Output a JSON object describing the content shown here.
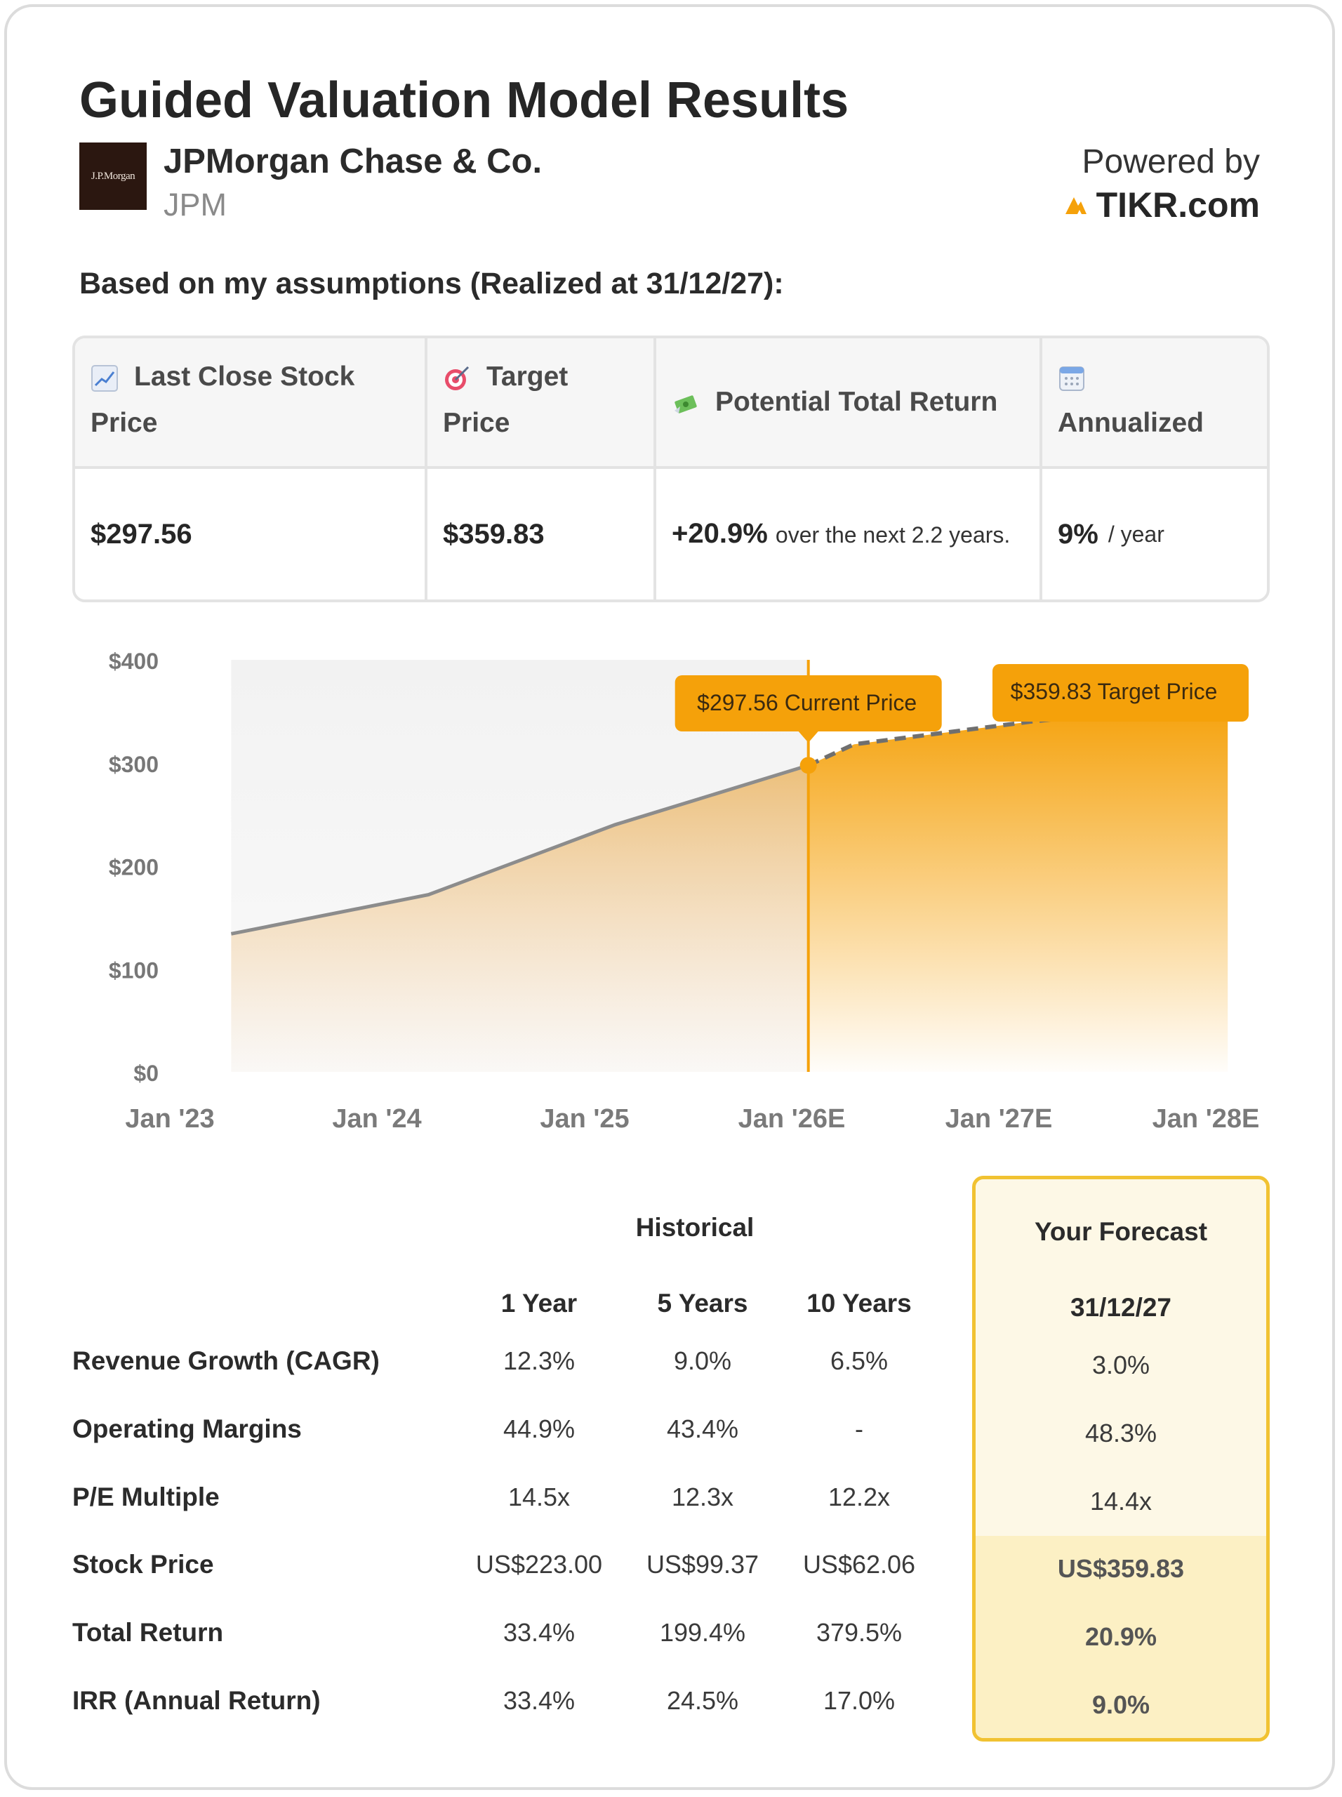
{
  "header": {
    "title": "Guided Valuation Model Results",
    "company": "JPMorgan Chase & Co.",
    "ticker": "JPM",
    "logo_text": "J.P.Morgan",
    "powered_by": "Powered by",
    "brand": "TIKR.com"
  },
  "subtitle": "Based on my assumptions (Realized at 31/12/27):",
  "summary": {
    "headers": {
      "last_close": "Last Close Stock Price",
      "target": "Target Price",
      "potential": "Potential Total Return",
      "annualized": "Annualized"
    },
    "values": {
      "last_close": "$297.56",
      "target": "$359.83",
      "return_pct": "+20.9%",
      "return_text": "over the next 2.2 years.",
      "annualized_pct": "9%",
      "annualized_unit": "/ year"
    }
  },
  "chart_data": {
    "type": "area",
    "x_ticks": [
      "Jan '23",
      "Jan '24",
      "Jan '25",
      "Jan '26E",
      "Jan '27E",
      "Jan '28E"
    ],
    "y_ticks": [
      "$0",
      "$100",
      "$200",
      "$300",
      "$400"
    ],
    "ylim": [
      0,
      400
    ],
    "xlim": [
      2023.0,
      2028.0
    ],
    "series": [
      {
        "name": "Historical",
        "points": [
          [
            2023.15,
            134
          ],
          [
            2024.1,
            172
          ],
          [
            2025.0,
            240
          ],
          [
            2025.93,
            297.56
          ]
        ]
      },
      {
        "name": "Forecast",
        "points": [
          [
            2025.93,
            297.56
          ],
          [
            2026.15,
            318
          ],
          [
            2027.0,
            340
          ],
          [
            2027.95,
            359.83
          ]
        ]
      }
    ],
    "current_marker": {
      "x": 2025.93,
      "y": 297.56,
      "label": "$297.56 Current Price"
    },
    "target_marker": {
      "x": 2027.95,
      "y": 359.83,
      "label": "$359.83 Target Price"
    },
    "colors": {
      "accent": "#f5a10a",
      "line": "#8c8c8c",
      "forecast_line": "#6f6f6f"
    }
  },
  "metrics": {
    "historical_label": "Historical",
    "forecast_label": "Your Forecast",
    "columns": [
      "1 Year",
      "5 Years",
      "10 Years"
    ],
    "forecast_date": "31/12/27",
    "rows": [
      {
        "label": "Revenue Growth (CAGR)",
        "values": [
          "12.3%",
          "9.0%",
          "6.5%"
        ],
        "forecast": "3.0%"
      },
      {
        "label": "Operating Margins",
        "values": [
          "44.9%",
          "43.4%",
          "-"
        ],
        "forecast": "48.3%"
      },
      {
        "label": "P/E Multiple",
        "values": [
          "14.5x",
          "12.3x",
          "12.2x"
        ],
        "forecast": "14.4x"
      },
      {
        "label": "Stock Price",
        "values": [
          "US$223.00",
          "US$99.37",
          "US$62.06"
        ],
        "forecast": "US$359.83"
      },
      {
        "label": "Total Return",
        "values": [
          "33.4%",
          "199.4%",
          "379.5%"
        ],
        "forecast": "20.9%"
      },
      {
        "label": "IRR (Annual Return)",
        "values": [
          "33.4%",
          "24.5%",
          "17.0%"
        ],
        "forecast": "9.0%"
      }
    ]
  }
}
